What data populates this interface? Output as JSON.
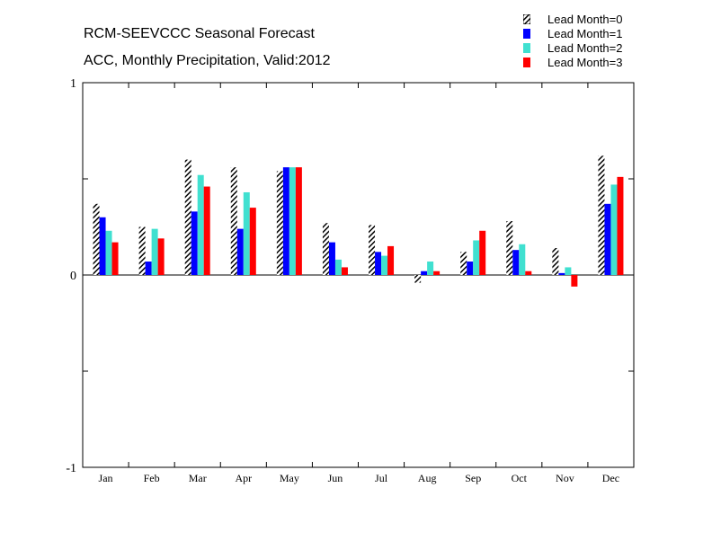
{
  "title": "RCM-SEEVCCC Seasonal Forecast",
  "subtitle": "ACC, Monthly Precipitation, Valid:2012",
  "colors": {
    "lead1": "#0000ff",
    "lead2": "#40e0d0",
    "lead3": "#ff0000",
    "lead0_pattern": "black-white-diagonal-hatch"
  },
  "chart_data": {
    "type": "bar",
    "title": "RCM-SEEVCCC Seasonal Forecast",
    "subtitle": "ACC, Monthly Precipitation, Valid:2012",
    "categories": [
      "Jan",
      "Feb",
      "Mar",
      "Apr",
      "May",
      "Jun",
      "Jul",
      "Aug",
      "Sep",
      "Oct",
      "Nov",
      "Dec"
    ],
    "series": [
      {
        "name": "Lead Month=0",
        "values": [
          0.37,
          0.25,
          0.6,
          0.56,
          0.54,
          0.27,
          0.26,
          -0.04,
          0.12,
          0.28,
          0.14,
          0.62
        ]
      },
      {
        "name": "Lead Month=1",
        "values": [
          0.3,
          0.07,
          0.33,
          0.24,
          0.56,
          0.17,
          0.12,
          0.02,
          0.07,
          0.13,
          0.01,
          0.37
        ]
      },
      {
        "name": "Lead Month=2",
        "values": [
          0.23,
          0.24,
          0.52,
          0.43,
          0.56,
          0.08,
          0.1,
          0.07,
          0.18,
          0.16,
          0.04,
          0.47
        ]
      },
      {
        "name": "Lead Month=3",
        "values": [
          0.17,
          0.19,
          0.46,
          0.35,
          0.56,
          0.04,
          0.15,
          0.02,
          0.23,
          0.02,
          -0.06,
          0.51
        ]
      }
    ],
    "ylim": [
      -1,
      1
    ],
    "yticks": [
      "-1",
      "0",
      "1"
    ],
    "legend_position": "top-right",
    "grid": false
  }
}
